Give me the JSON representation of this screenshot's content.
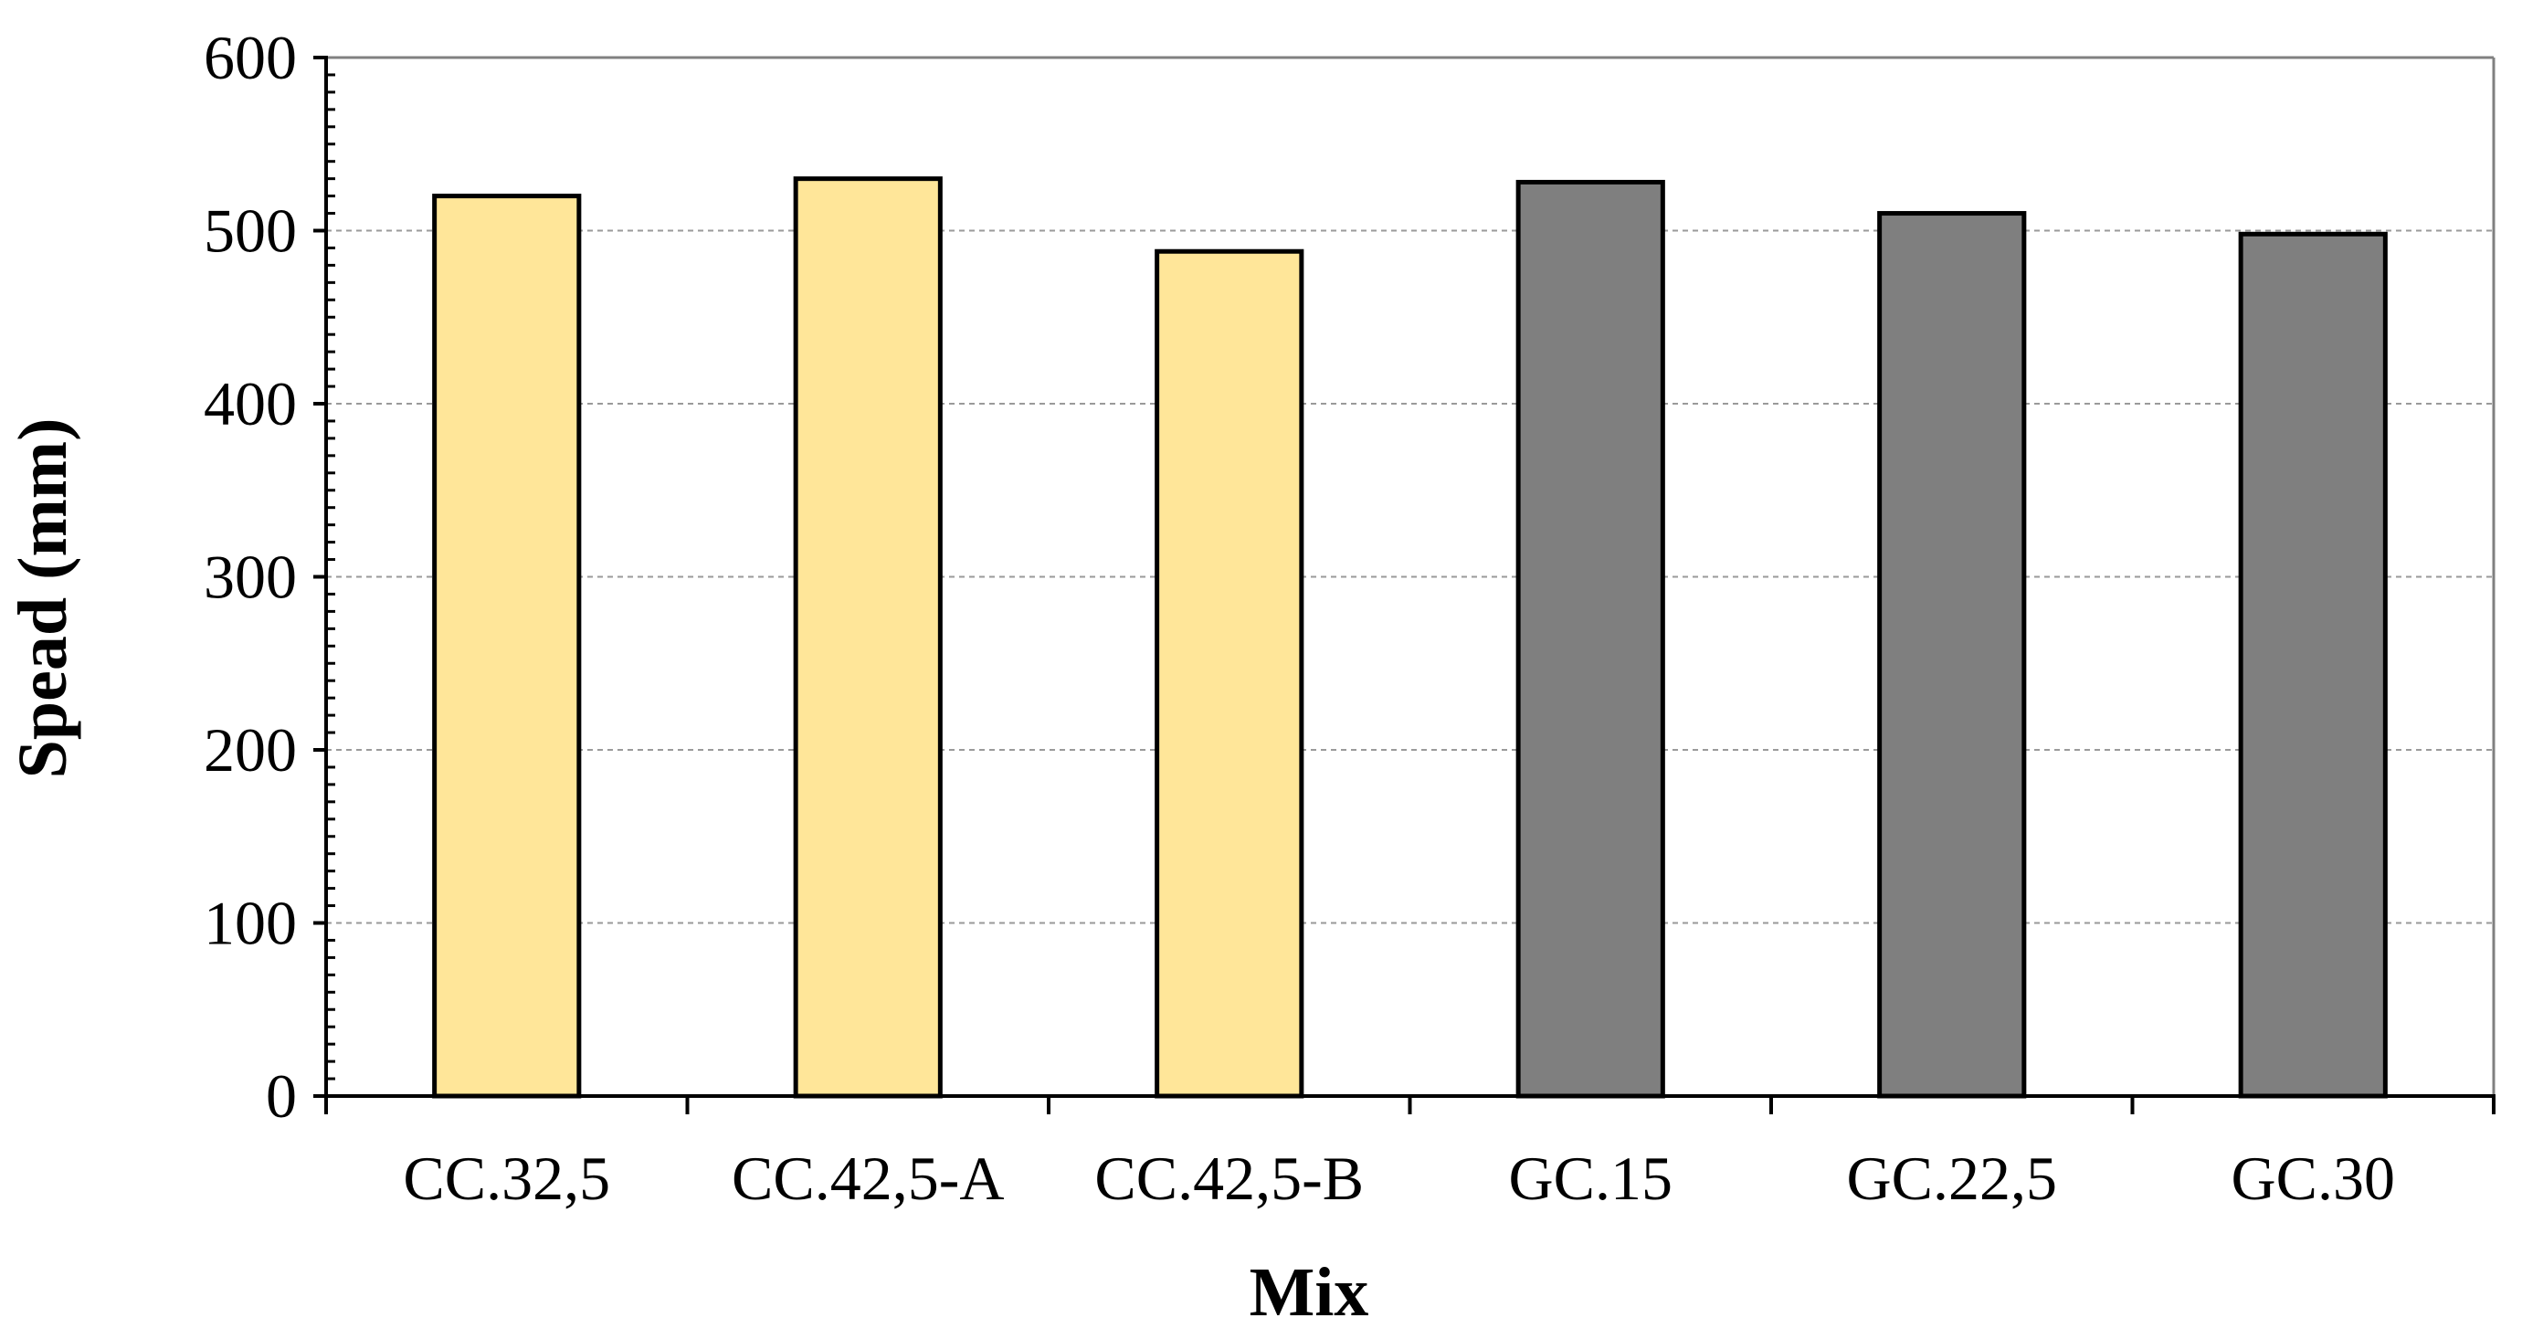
{
  "chart_data": {
    "type": "bar",
    "title": "",
    "xlabel": "Mix",
    "ylabel": "Spead (mm)",
    "ylim": [
      0,
      600
    ],
    "yticks": [
      0,
      100,
      200,
      300,
      400,
      500,
      600
    ],
    "grid": "horizontal dashed",
    "legend": "none",
    "categories": [
      "CC.32,5",
      "CC.42,5-A",
      "CC.42,5-B",
      "GC.15",
      "GC.22,5",
      "GC.30"
    ],
    "values": [
      520,
      530,
      488,
      528,
      510,
      498
    ],
    "colors": [
      "#FFE699",
      "#FFE699",
      "#FFE699",
      "#7F7F7F",
      "#7F7F7F",
      "#7F7F7F"
    ]
  }
}
